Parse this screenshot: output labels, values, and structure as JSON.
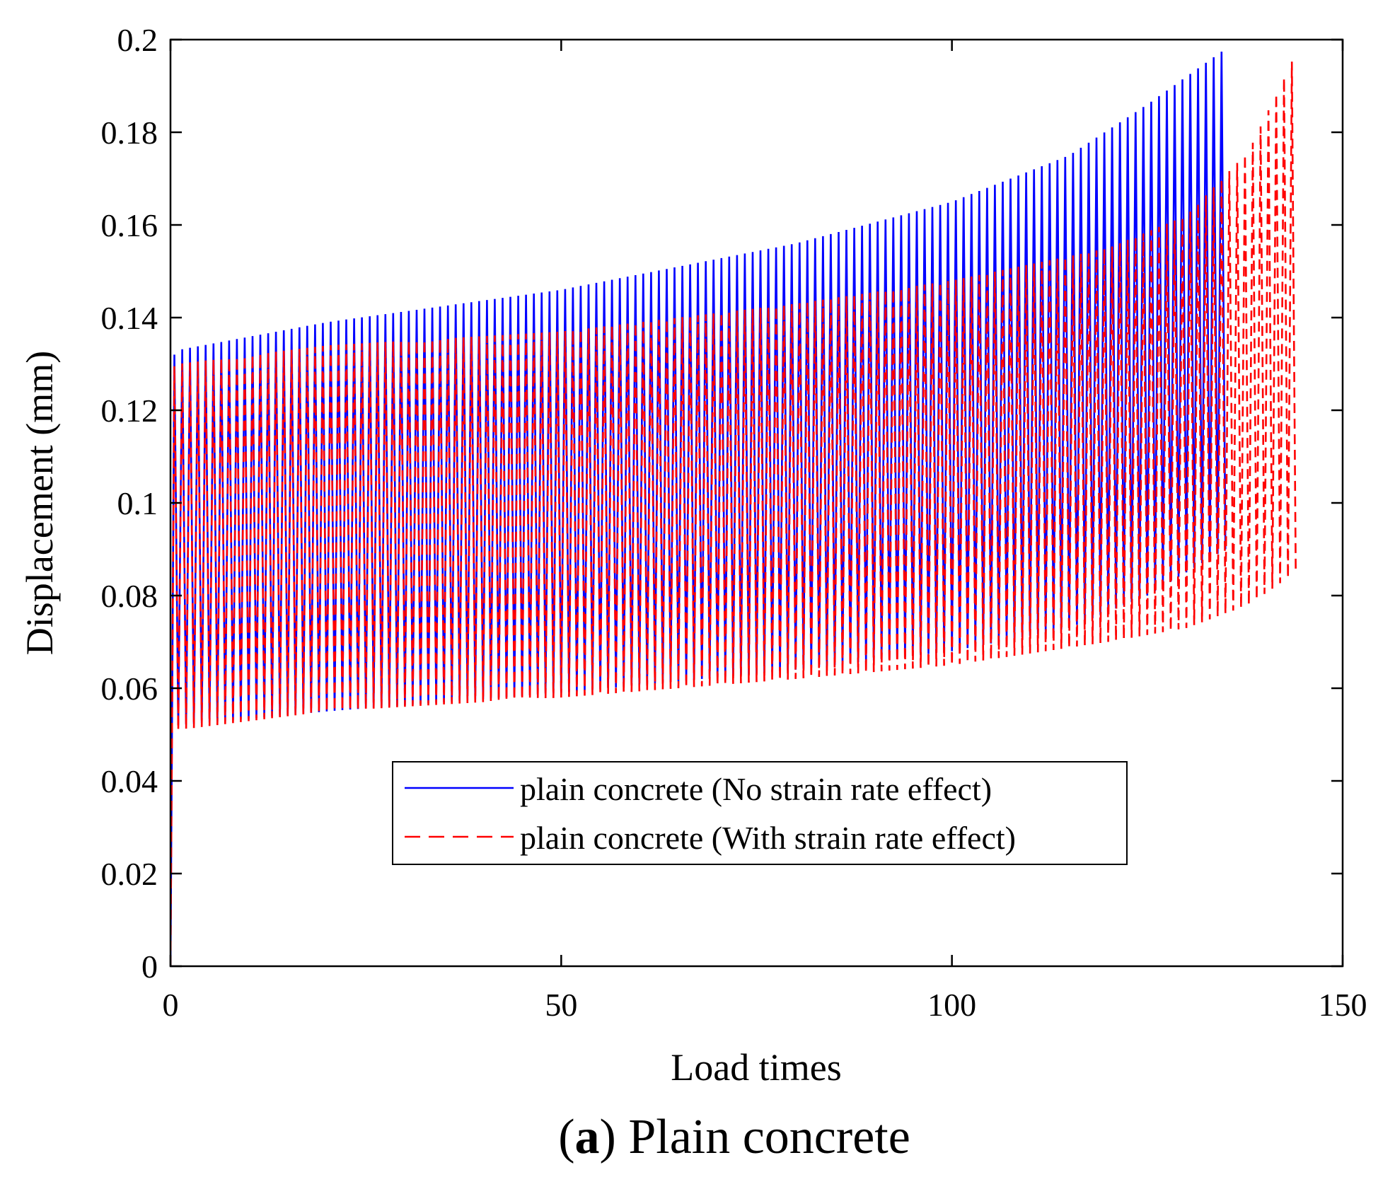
{
  "caption": {
    "letter": "a",
    "text": " Plain concrete"
  },
  "chart_data": {
    "type": "line",
    "xlabel": "Load times",
    "ylabel": "Displacement (mm)",
    "xlim": [
      0,
      150
    ],
    "ylim": [
      0,
      0.2
    ],
    "xticks": [
      0,
      50,
      100,
      150
    ],
    "yticks": [
      0,
      0.02,
      0.04,
      0.06,
      0.08,
      0.1,
      0.12,
      0.14,
      0.16,
      0.18,
      0.2
    ],
    "grid": false,
    "legend_position": "lower-center",
    "series": [
      {
        "name": "plain concrete (No strain rate effect)",
        "color": "#0000ff",
        "style": "solid",
        "cycles": 135,
        "peak_envelope": {
          "x": [
            0,
            1,
            20,
            50,
            80,
            100,
            115,
            125,
            130,
            135
          ],
          "y": [
            0.131,
            0.133,
            0.139,
            0.146,
            0.156,
            0.165,
            0.175,
            0.186,
            0.192,
            0.198
          ]
        },
        "trough_envelope": {
          "x": [
            0,
            1,
            20,
            50,
            80,
            100,
            115,
            125,
            130,
            135
          ],
          "y": [
            0.05,
            0.052,
            0.055,
            0.059,
            0.064,
            0.068,
            0.073,
            0.08,
            0.085,
            0.09
          ]
        }
      },
      {
        "name": "plain concrete (With strain rate effect)",
        "color": "#ff0000",
        "style": "dashed",
        "cycles": 144,
        "peak_envelope": {
          "x": [
            0,
            1,
            20,
            50,
            80,
            100,
            120,
            130,
            138,
            144
          ],
          "y": [
            0.129,
            0.13,
            0.134,
            0.137,
            0.143,
            0.148,
            0.155,
            0.162,
            0.176,
            0.197
          ]
        },
        "trough_envelope": {
          "x": [
            0,
            1,
            20,
            50,
            80,
            100,
            120,
            130,
            138,
            144
          ],
          "y": [
            0.05,
            0.051,
            0.055,
            0.058,
            0.062,
            0.065,
            0.07,
            0.073,
            0.078,
            0.085
          ]
        }
      }
    ]
  }
}
